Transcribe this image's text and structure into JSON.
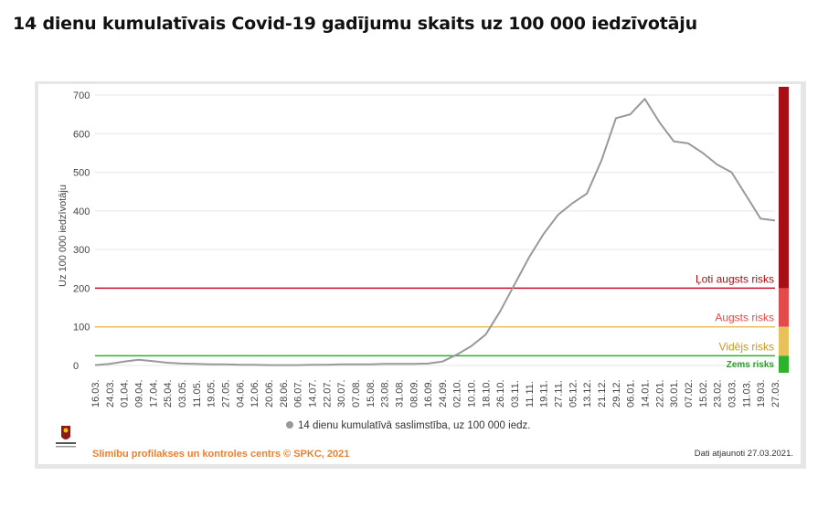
{
  "title": "14 dienu kumulatīvais Covid-19 gadījumu skaits uz 100 000 iedzīvotāju",
  "footer": {
    "source": "Slimību profilakses un kontroles centrs © SPKC, 2021",
    "updated": "Dati atjaunoti 27.03.2021."
  },
  "colors": {
    "very_high": "#a50f15",
    "high": "#e34a4a",
    "medium": "#e8c15a",
    "low": "#2db22d",
    "line": "#999999",
    "source_text": "#ee7f2d"
  },
  "chart_data": {
    "type": "line",
    "ylabel": "Uz 100 000 iedzīvotāju",
    "ylim": [
      0,
      700
    ],
    "yticks": [
      0,
      100,
      200,
      300,
      400,
      500,
      600,
      700
    ],
    "xticks": [
      "16.03.",
      "24.03.",
      "01.04.",
      "09.04.",
      "17.04.",
      "25.04.",
      "03.05.",
      "11.05.",
      "19.05.",
      "27.05.",
      "04.06.",
      "12.06.",
      "20.06.",
      "28.06.",
      "06.07.",
      "14.07.",
      "22.07.",
      "30.07.",
      "07.08.",
      "15.08.",
      "23.08.",
      "31.08.",
      "08.09.",
      "16.09.",
      "24.09.",
      "02.10.",
      "10.10.",
      "18.10.",
      "26.10.",
      "03.11.",
      "11.11.",
      "19.11.",
      "27.11.",
      "05.12.",
      "13.12.",
      "21.12.",
      "29.12.",
      "06.01.",
      "14.01.",
      "22.01.",
      "30.01.",
      "07.02.",
      "15.02.",
      "23.02.",
      "03.03.",
      "11.03.",
      "19.03.",
      "27.03."
    ],
    "legend": "14 dienu kumulatīvā saslimstība, uz 100 000 iedz.",
    "legend_position": "bottom",
    "series": [
      {
        "values": [
          1,
          4,
          10,
          15,
          11,
          7,
          5,
          4,
          3,
          3,
          2,
          2,
          1,
          1,
          1,
          2,
          2,
          3,
          3,
          3,
          4,
          4,
          4,
          5,
          10,
          28,
          50,
          80,
          140,
          210,
          280,
          340,
          390,
          420,
          445,
          530,
          640,
          650,
          690,
          630,
          580,
          575,
          550,
          520,
          500,
          440,
          380,
          375
        ]
      }
    ],
    "thresholds": [
      {
        "label": "Ļoti augsts risks",
        "value": 200,
        "color": "#c8102e"
      },
      {
        "label": "Augsts risks",
        "value": 100,
        "color": "#e8c15a"
      },
      {
        "label": "Vidējs risks",
        "value": 25,
        "color": "#2db22d"
      },
      {
        "label": "Zems risks",
        "value": 0,
        "color": "#2db22d"
      }
    ],
    "risk_bands": [
      {
        "label": "Ļoti augsts risks",
        "from": 200,
        "to": 700,
        "color": "#a50f15",
        "text_color": "#a50f15"
      },
      {
        "label": "Augsts risks",
        "from": 100,
        "to": 200,
        "color": "#e34a4a",
        "text_color": "#e34a4a"
      },
      {
        "label": "Vidējs risks",
        "from": 25,
        "to": 100,
        "color": "#e8c15a",
        "text_color": "#c79a1a"
      },
      {
        "label": "Zems risks",
        "from": 0,
        "to": 25,
        "color": "#2db22d",
        "text_color": "#2a9d2a"
      }
    ],
    "grid": true
  }
}
